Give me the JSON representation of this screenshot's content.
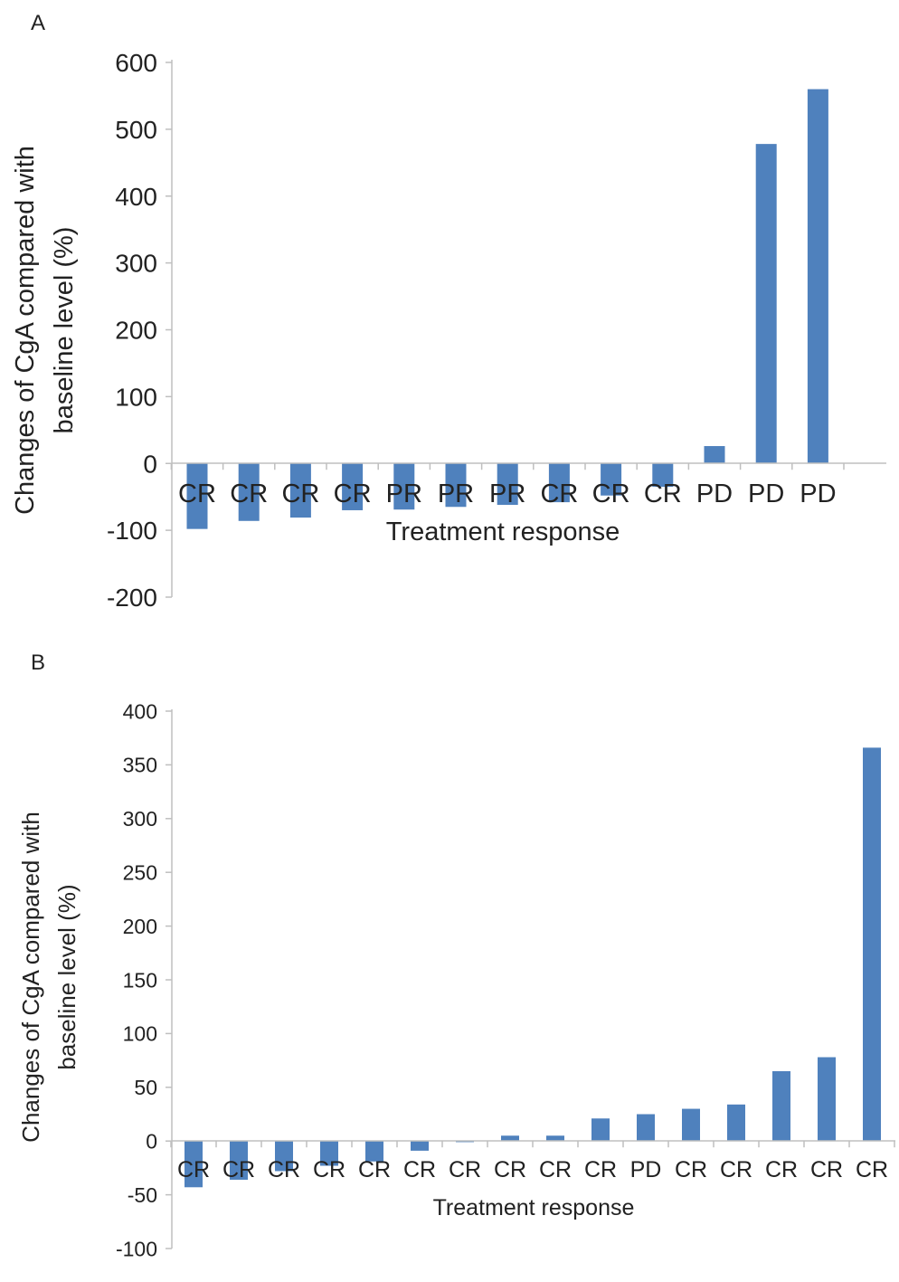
{
  "chart_data": [
    {
      "type": "bar",
      "panel_label": "A",
      "categories": [
        "CR",
        "CR",
        "CR",
        "CR",
        "PR",
        "PR",
        "PR",
        "CR",
        "CR",
        "CR",
        "PD",
        "PD",
        "PD"
      ],
      "values": [
        -98,
        -86,
        -81,
        -70,
        -69,
        -65,
        -62,
        -58,
        -48,
        -35,
        26,
        478,
        560
      ],
      "xlabel": "Treatment response",
      "ylabel": [
        "Changes of CgA compared with",
        "baseline level (%)"
      ],
      "ylim": [
        -200,
        600
      ],
      "yticks": [
        -200,
        -100,
        0,
        100,
        200,
        300,
        400,
        500,
        600
      ],
      "color": "#4f81bd",
      "grid": false,
      "legend": false
    },
    {
      "type": "bar",
      "panel_label": "B",
      "categories": [
        "CR",
        "CR",
        "CR",
        "CR",
        "CR",
        "CR",
        "CR",
        "CR",
        "CR",
        "CR",
        "PD",
        "CR",
        "CR",
        "CR",
        "CR",
        "CR"
      ],
      "values": [
        -43,
        -36,
        -28,
        -23,
        -19,
        -9,
        -1,
        5,
        5,
        21,
        25,
        30,
        34,
        65,
        78,
        366
      ],
      "xlabel": "Treatment response",
      "ylabel": [
        "Changes of CgA compared with",
        "baseline level (%)"
      ],
      "ylim": [
        -100,
        400
      ],
      "yticks": [
        -100,
        -50,
        0,
        50,
        100,
        150,
        200,
        250,
        300,
        350,
        400
      ],
      "color": "#4f81bd",
      "grid": false,
      "legend": false
    }
  ]
}
